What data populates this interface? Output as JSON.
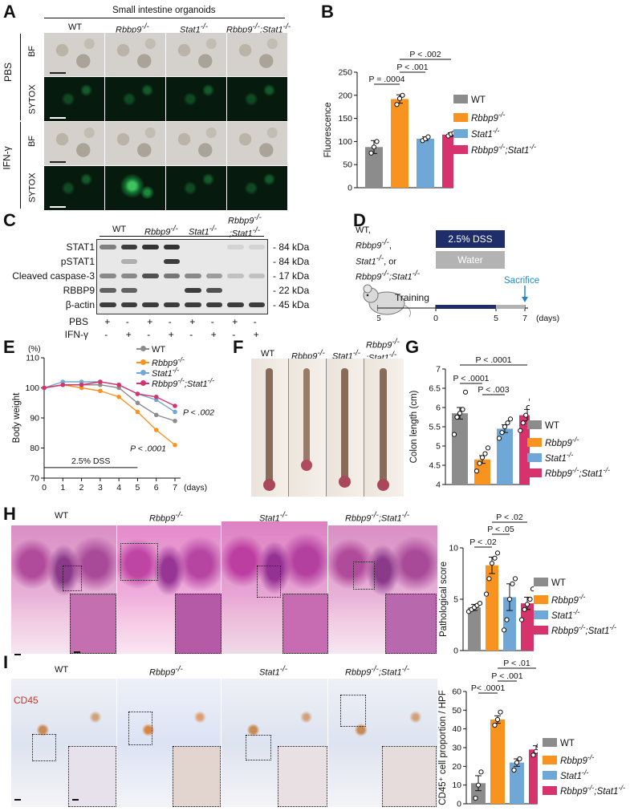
{
  "panels": {
    "A": "A",
    "B": "B",
    "C": "C",
    "D": "D",
    "E": "E",
    "F": "F",
    "G": "G",
    "H": "H",
    "I": "I"
  },
  "panelA": {
    "title": "Small intestine organoids",
    "columns": [
      "WT",
      "Rbbp9",
      "Stat1",
      "Rbbp9",
      "Stat1"
    ],
    "col_sup": "-/-",
    "group_labels": [
      "PBS",
      "IFN-γ"
    ],
    "row_labels": [
      "BF",
      "SYTOX",
      "BF",
      "SYTOX"
    ]
  },
  "panelC": {
    "header": [
      "WT",
      "Rbbp9",
      "Stat1",
      "Rbbp9",
      ";Stat1"
    ],
    "sup": "-/-",
    "rows": [
      "STAT1",
      "pSTAT1",
      "Cleaved caspase-3",
      "RBBP9",
      "β-actin"
    ],
    "kda": [
      "84 kDa",
      "84 kDa",
      "17 kDa",
      "22 kDa",
      "45 kDa"
    ],
    "treat_labels": [
      "PBS",
      "IFN-γ"
    ],
    "pbs": [
      "+",
      "-",
      "+",
      "-",
      "+",
      "-",
      "+",
      "-"
    ],
    "ifng": [
      "-",
      "+",
      "-",
      "+",
      "-",
      "+",
      "-",
      "+"
    ]
  },
  "panelD": {
    "mice_line1": "WT,",
    "mice_line2": "Rbbp9",
    "mice_line3": "Stat1",
    "mice_line3b": ", or",
    "mice_line4a": "Rbbp9",
    "mice_line4b": ";Stat1",
    "sup": "-/-",
    "dss": "2.5% DSS",
    "water": "Water",
    "training": "Training",
    "sacrifice": "Sacrifice",
    "ticks": [
      "-5",
      "0",
      "5",
      "7"
    ],
    "unit": "(days)"
  },
  "panelF": {
    "labels": [
      "WT",
      "Rbbp9",
      "Stat1",
      "Rbbp9",
      ";Stat1"
    ],
    "sup": "-/-"
  },
  "panelH": {
    "labels": [
      "WT",
      "Rbbp9",
      "Stat1",
      "Rbbp9",
      ";Stat1"
    ],
    "sup": "-/-"
  },
  "panelI": {
    "labels": [
      "WT",
      "Rbbp9",
      "Stat1",
      "Rbbp9",
      ";Stat1"
    ],
    "sup": "-/-",
    "stain": "CD45"
  },
  "legend": {
    "items": [
      "WT",
      "Rbbp9",
      "Stat1",
      "Rbbp9",
      ";Stat1"
    ],
    "sup": "-/-"
  },
  "colors": {
    "WT": "#8c8c8c",
    "Rbbp9": "#f7931e",
    "Stat1": "#6fa8d6",
    "DKO": "#d6336c",
    "DSS": "#1f2d6b",
    "Water": "#b3b3b3"
  },
  "chart_data": [
    {
      "id": "B",
      "type": "bar",
      "categories": [
        "WT",
        "Rbbp9-/-",
        "Stat1-/-",
        "Rbbp9-/-;Stat1-/-"
      ],
      "values": [
        88,
        192,
        106,
        115
      ],
      "errors": [
        14,
        9,
        4,
        4
      ],
      "points": [
        [
          75,
          88,
          100
        ],
        [
          180,
          193,
          200
        ],
        [
          102,
          106,
          110
        ],
        [
          112,
          116,
          118
        ]
      ],
      "ylabel": "Fluorescence",
      "ylim": [
        0,
        250
      ],
      "yticks": [
        0,
        50,
        100,
        150,
        200,
        250
      ],
      "stats": [
        "P = .0004",
        "P < .001",
        "P < .002"
      ]
    },
    {
      "id": "E",
      "type": "line",
      "x": [
        0,
        1,
        2,
        3,
        4,
        5,
        6,
        7
      ],
      "series": [
        {
          "name": "WT",
          "values": [
            100,
            101,
            101,
            101,
            100,
            95,
            91,
            89
          ]
        },
        {
          "name": "Rbbp9-/-",
          "values": [
            100,
            101,
            100,
            99,
            97,
            92,
            86,
            81
          ]
        },
        {
          "name": "Stat1-/-",
          "values": [
            100,
            102,
            102,
            102,
            101,
            98,
            96,
            92
          ]
        },
        {
          "name": "Rbbp9-/-;Stat1-/-",
          "values": [
            100,
            101,
            101,
            102,
            101,
            98,
            97,
            94
          ]
        }
      ],
      "ylabel": "Body weight",
      "yunit": "(%)",
      "xunit": "(days)",
      "ylim": [
        70,
        110
      ],
      "yticks": [
        70,
        80,
        90,
        100,
        110
      ],
      "annotation": "2.5% DSS",
      "stats": [
        "P < .002",
        "P < .0001"
      ]
    },
    {
      "id": "G",
      "type": "bar",
      "categories": [
        "WT",
        "Rbbp9-/-",
        "Stat1-/-",
        "Rbbp9-/-;Stat1-/-"
      ],
      "values": [
        5.85,
        4.65,
        5.45,
        5.8
      ],
      "errors": [
        0.15,
        0.1,
        0.1,
        0.15
      ],
      "points": [
        [
          5.3,
          5.75,
          5.85,
          5.95,
          6.4
        ],
        [
          4.35,
          4.55,
          4.7,
          4.8,
          4.95
        ],
        [
          5.2,
          5.35,
          5.5,
          5.6,
          5.7
        ],
        [
          5.4,
          5.6,
          5.8,
          6.0,
          6.2,
          6.25
        ]
      ],
      "ylabel": "Colon length (cm)",
      "ylim": [
        4.0,
        7.0
      ],
      "yticks": [
        4.0,
        4.5,
        5.0,
        5.5,
        6.0,
        6.5,
        7.0
      ],
      "stats": [
        "P < .0001",
        "P < .003",
        "P < .0001"
      ]
    },
    {
      "id": "H",
      "type": "bar",
      "categories": [
        "WT",
        "Rbbp9-/-",
        "Stat1-/-",
        "Rbbp9-/-;Stat1-/-"
      ],
      "values": [
        4.2,
        8.3,
        5.2,
        4.6
      ],
      "errors": [
        0.3,
        0.8,
        1.3,
        0.6
      ],
      "points": [
        [
          3.8,
          4.0,
          4.2,
          4.4,
          4.6
        ],
        [
          5.5,
          7.0,
          8.5,
          9.0,
          9.5
        ],
        [
          2.0,
          3.0,
          5.0,
          6.5,
          7.0
        ],
        [
          3.0,
          4.0,
          4.5,
          5.0,
          6.0
        ]
      ],
      "ylabel": "Pathological score",
      "ylim": [
        0,
        10
      ],
      "yticks": [
        0,
        5,
        10
      ],
      "stats": [
        "P < .02",
        "P < .05",
        "P < .02"
      ]
    },
    {
      "id": "I",
      "type": "bar",
      "categories": [
        "WT",
        "Rbbp9-/-",
        "Stat1-/-",
        "Rbbp9-/-;Stat1-/-"
      ],
      "values": [
        11,
        45,
        22,
        29
      ],
      "errors": [
        4,
        2,
        2,
        2
      ],
      "points": [
        [
          3,
          10,
          17
        ],
        [
          42,
          45,
          49
        ],
        [
          18,
          22,
          24
        ],
        [
          26,
          28,
          31
        ]
      ],
      "ylabel": "CD45⁺ cell proportion / HPF",
      "ylim": [
        0,
        60
      ],
      "yticks": [
        0,
        10,
        20,
        30,
        40,
        50,
        60
      ],
      "stats": [
        "P< .0001",
        "P < .001",
        "P < .01"
      ]
    }
  ]
}
